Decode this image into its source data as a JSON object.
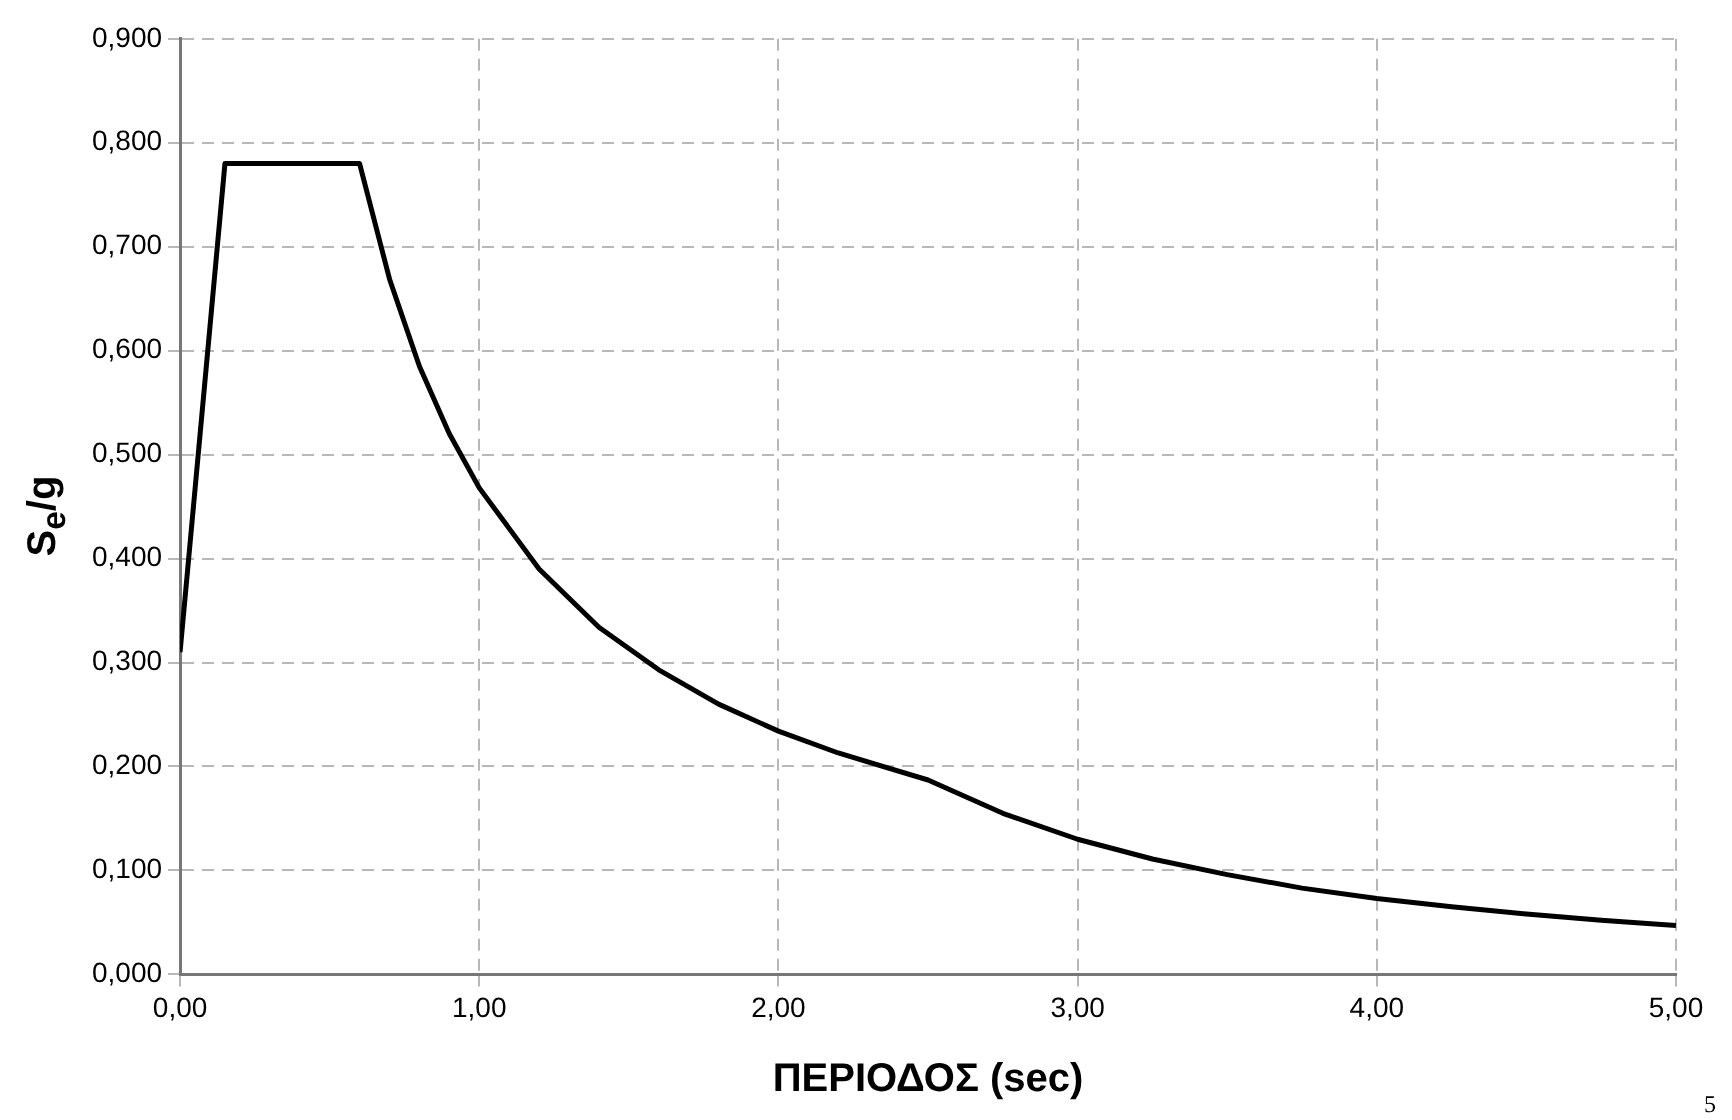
{
  "chart_data": {
    "type": "line",
    "xlabel": "ΠΕΡΙΟΔΟΣ (sec)",
    "ylabel": "S$_{e}$/g",
    "x": [
      0,
      0.15,
      0.6,
      0.7,
      0.8,
      0.9,
      1.0,
      1.2,
      1.4,
      1.6,
      1.8,
      2.0,
      2.2,
      2.5,
      2.75,
      3.0,
      3.25,
      3.5,
      3.75,
      4.0,
      4.25,
      4.5,
      4.75,
      5.0
    ],
    "series": [
      {
        "color": "#000000",
        "values": [
          0.31,
          0.78,
          0.78,
          0.669,
          0.585,
          0.52,
          0.468,
          0.39,
          0.334,
          0.293,
          0.26,
          0.234,
          0.213,
          0.187,
          0.155,
          0.13,
          0.111,
          0.096,
          0.083,
          0.073,
          0.065,
          0.058,
          0.052,
          0.047
        ]
      }
    ],
    "xlim": [
      0,
      5
    ],
    "xticks": [
      {
        "value": 0,
        "label": "0,00"
      },
      {
        "value": 1,
        "label": "1,00"
      },
      {
        "value": 2,
        "label": "2,00"
      },
      {
        "value": 3,
        "label": "3,00"
      },
      {
        "value": 4,
        "label": "4,00"
      },
      {
        "value": 5,
        "label": "5,00"
      }
    ],
    "ylim": [
      0,
      0.9
    ],
    "yticks": [
      {
        "value": 0,
        "label": "0,000"
      },
      {
        "value": 0.1,
        "label": "0,100"
      },
      {
        "value": 0.2,
        "label": "0,200"
      },
      {
        "value": 0.3,
        "label": "0,300"
      },
      {
        "value": 0.4,
        "label": "0,400"
      },
      {
        "value": 0.5,
        "label": "0,500"
      },
      {
        "value": 0.6,
        "label": "0,600"
      },
      {
        "value": 0.7,
        "label": "0,700"
      },
      {
        "value": 0.8,
        "label": "0,800"
      },
      {
        "value": 0.9,
        "label": "0,900"
      }
    ],
    "grid": true,
    "marker": "none",
    "line_style": "solid",
    "annotations": [
      "5"
    ]
  }
}
